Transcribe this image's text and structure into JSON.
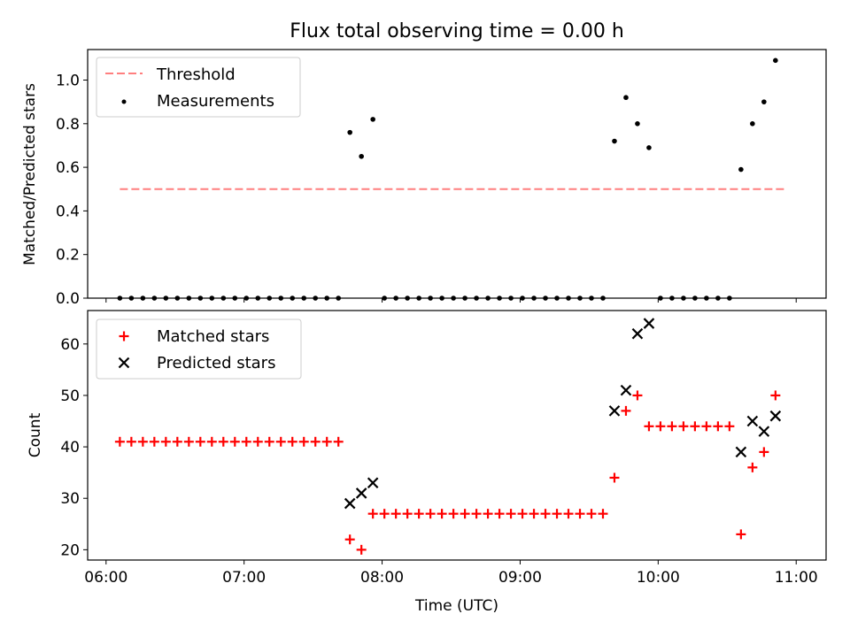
{
  "chart_data": {
    "title": "Flux total observing time = 0.00 h",
    "xlabel": "Time (UTC)",
    "x_ticks": [
      "06:00",
      "07:00",
      "08:00",
      "09:00",
      "10:00",
      "11:00"
    ],
    "x_range": [
      "05:52",
      "11:13"
    ],
    "grid": false,
    "panels": [
      {
        "type": "scatter",
        "ylabel": "Matched/Predicted stars",
        "ylim": [
          0,
          1.14
        ],
        "y_ticks": [
          "0.0",
          "0.2",
          "0.4",
          "0.6",
          "0.8",
          "1.0"
        ],
        "legend_position": "top-left",
        "series": [
          {
            "name": "Threshold",
            "kind": "dashed-line",
            "color": "#ff7f7f",
            "x": [
              "06:06",
              "10:55"
            ],
            "values": [
              0.5,
              0.5
            ]
          },
          {
            "name": "Measurements",
            "kind": "dot",
            "color": "#000000",
            "x": [
              "06:06",
              "06:11",
              "06:16",
              "06:21",
              "06:26",
              "06:31",
              "06:36",
              "06:41",
              "06:46",
              "06:51",
              "06:56",
              "07:01",
              "07:06",
              "07:11",
              "07:16",
              "07:21",
              "07:26",
              "07:31",
              "07:36",
              "07:41",
              "07:46",
              "07:51",
              "07:56",
              "08:01",
              "08:06",
              "08:11",
              "08:16",
              "08:21",
              "08:26",
              "08:31",
              "08:36",
              "08:41",
              "08:46",
              "08:51",
              "08:56",
              "09:01",
              "09:06",
              "09:11",
              "09:16",
              "09:21",
              "09:26",
              "09:31",
              "09:36",
              "09:41",
              "09:46",
              "09:51",
              "09:56",
              "10:01",
              "10:06",
              "10:11",
              "10:16",
              "10:21",
              "10:26",
              "10:31",
              "10:36",
              "10:41",
              "10:46",
              "10:51"
            ],
            "values": [
              0,
              0,
              0,
              0,
              0,
              0,
              0,
              0,
              0,
              0,
              0,
              0,
              0,
              0,
              0,
              0,
              0,
              0,
              0,
              0,
              0.76,
              0.65,
              0.82,
              0,
              0,
              0,
              0,
              0,
              0,
              0,
              0,
              0,
              0,
              0,
              0,
              0,
              0,
              0,
              0,
              0,
              0,
              0,
              0,
              0.72,
              0.92,
              0.8,
              0.69,
              0,
              0,
              0,
              0,
              0,
              0,
              0,
              0.59,
              0.8,
              0.9,
              1.09
            ]
          }
        ]
      },
      {
        "type": "scatter",
        "ylabel": "Count",
        "ylim": [
          18,
          66.5
        ],
        "y_ticks": [
          "20",
          "30",
          "40",
          "50",
          "60"
        ],
        "legend_position": "top-left",
        "series": [
          {
            "name": "Matched stars",
            "kind": "plus",
            "color": "#ff0000",
            "x": [
              "06:06",
              "06:11",
              "06:16",
              "06:21",
              "06:26",
              "06:31",
              "06:36",
              "06:41",
              "06:46",
              "06:51",
              "06:56",
              "07:01",
              "07:06",
              "07:11",
              "07:16",
              "07:21",
              "07:26",
              "07:31",
              "07:36",
              "07:41",
              "07:46",
              "07:51",
              "07:56",
              "08:01",
              "08:06",
              "08:11",
              "08:16",
              "08:21",
              "08:26",
              "08:31",
              "08:36",
              "08:41",
              "08:46",
              "08:51",
              "08:56",
              "09:01",
              "09:06",
              "09:11",
              "09:16",
              "09:21",
              "09:26",
              "09:31",
              "09:36",
              "09:41",
              "09:46",
              "09:51",
              "09:56",
              "10:01",
              "10:06",
              "10:11",
              "10:16",
              "10:21",
              "10:26",
              "10:31",
              "10:36",
              "10:41",
              "10:46",
              "10:51"
            ],
            "values": [
              41,
              41,
              41,
              41,
              41,
              41,
              41,
              41,
              41,
              41,
              41,
              41,
              41,
              41,
              41,
              41,
              41,
              41,
              41,
              41,
              22,
              20,
              27,
              27,
              27,
              27,
              27,
              27,
              27,
              27,
              27,
              27,
              27,
              27,
              27,
              27,
              27,
              27,
              27,
              27,
              27,
              27,
              27,
              34,
              47,
              50,
              44,
              44,
              44,
              44,
              44,
              44,
              44,
              44,
              23,
              36,
              39,
              50
            ]
          },
          {
            "name": "Predicted stars",
            "kind": "cross",
            "color": "#000000",
            "x": [
              "07:46",
              "07:51",
              "07:56",
              "09:41",
              "09:46",
              "09:51",
              "09:56",
              "10:36",
              "10:41",
              "10:46",
              "10:51"
            ],
            "values": [
              29,
              31,
              33,
              47,
              51,
              62,
              64,
              39,
              45,
              43,
              46
            ]
          }
        ]
      }
    ]
  }
}
